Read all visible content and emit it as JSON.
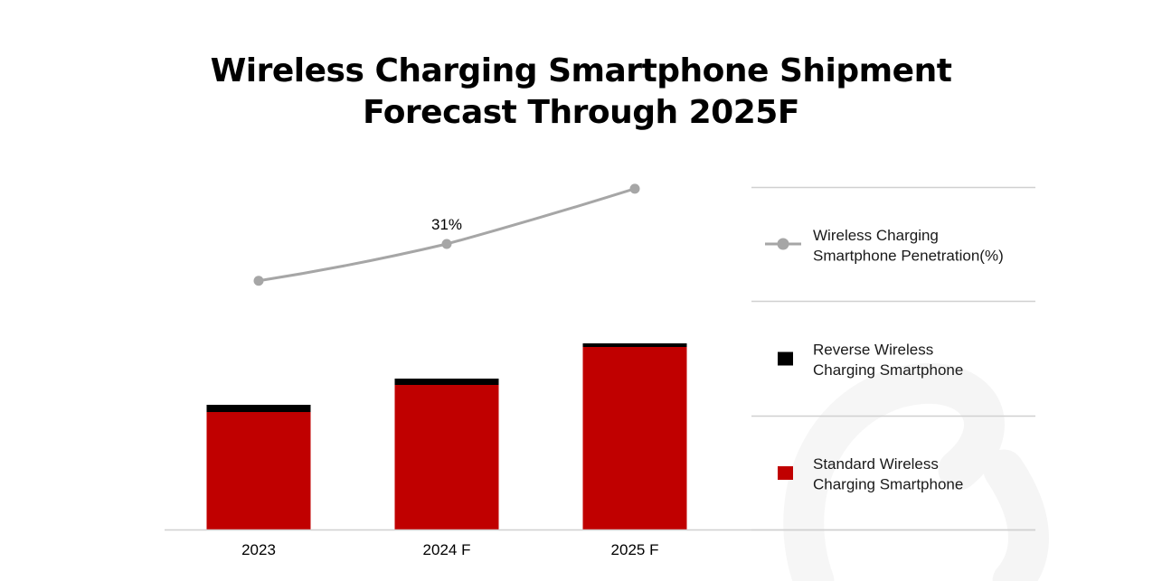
{
  "title_lines": [
    "Wireless Charging Smartphone Shipment",
    "Forecast Through 2025F"
  ],
  "chart_data": {
    "type": "bar",
    "stacked": true,
    "title": "Wireless Charging Smartphone Shipment Forecast Through 2025F",
    "xlabel": "",
    "ylabel": "",
    "categories": [
      "2023",
      "2024 F",
      "2025 F"
    ],
    "series": [
      {
        "name": "Standard Wireless Charging Smartphone",
        "type": "bar",
        "color": "#c00000",
        "values": [
          130,
          160,
          202
        ],
        "unit": "relative"
      },
      {
        "name": "Reverse Wireless Charging Smartphone",
        "type": "bar",
        "color": "#000000",
        "values": [
          8,
          7,
          4
        ],
        "unit": "relative"
      },
      {
        "name": "Wireless Charging Smartphone Penetration(%)",
        "type": "line",
        "color": "#a6a6a6",
        "values": [
          27,
          31,
          37
        ],
        "unit": "%",
        "data_labels": [
          null,
          "31%",
          null
        ]
      }
    ],
    "ylim": [
      0,
      230
    ],
    "y2lim": [
      0,
      40
    ],
    "grid": false,
    "legend": {
      "placement": "right",
      "entries": [
        {
          "label_lines": [
            "Wireless Charging",
            "Smartphone Penetration(%)"
          ],
          "marker": "line-dot",
          "color": "#a6a6a6"
        },
        {
          "label_lines": [
            "Reverse Wireless",
            "Charging Smartphone"
          ],
          "marker": "square",
          "color": "#000000"
        },
        {
          "label_lines": [
            "Standard Wireless",
            "Charging Smartphone"
          ],
          "marker": "square",
          "color": "#c00000"
        }
      ]
    }
  }
}
